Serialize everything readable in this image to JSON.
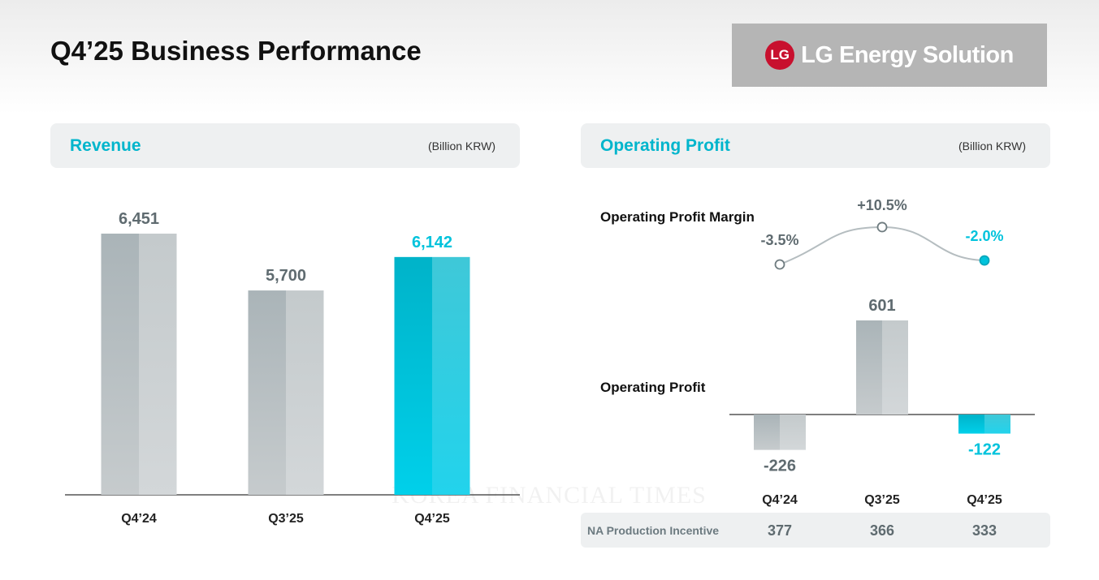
{
  "page": {
    "title": "Q4’25 Business Performance",
    "watermark": "KOREA FINANCIAL TIMES"
  },
  "logo": {
    "text": "LG Energy Solution",
    "mark": "LG"
  },
  "colors": {
    "accent": "#00c3dc",
    "gray_bar": "#bcc3c6",
    "text_gray": "#5f6b70",
    "title_cyan": "#00b5cc"
  },
  "revenue_panel": {
    "title": "Revenue",
    "unit": "(Billion KRW)"
  },
  "op_panel": {
    "title": "Operating Profit",
    "unit": "(Billion KRW)",
    "margin_label": "Operating Profit Margin",
    "profit_label": "Operating Profit"
  },
  "table": {
    "label": "NA Production Incentive",
    "values": [
      "377",
      "366",
      "333"
    ]
  },
  "chart_data": [
    {
      "type": "bar",
      "title": "Revenue",
      "ylabel": "Billion KRW",
      "categories": [
        "Q4’24",
        "Q3’25",
        "Q4’25"
      ],
      "values": [
        6451,
        5700,
        6142
      ],
      "labels": [
        "6,451",
        "5,700",
        "6,142"
      ],
      "highlight": [
        false,
        false,
        true
      ],
      "ylim": [
        3000,
        7000
      ],
      "grid": false
    },
    {
      "type": "line",
      "title": "Operating Profit Margin",
      "categories": [
        "Q4’24",
        "Q3’25",
        "Q4’25"
      ],
      "values": [
        -3.5,
        10.5,
        -2.0
      ],
      "labels": [
        "-3.5%",
        "+10.5%",
        "-2.0%"
      ],
      "highlight": [
        false,
        false,
        true
      ]
    },
    {
      "type": "bar",
      "title": "Operating Profit",
      "categories": [
        "Q4’24",
        "Q3’25",
        "Q4’25"
      ],
      "values": [
        -226,
        601,
        -122
      ],
      "labels": [
        "-226",
        "601",
        "-122"
      ],
      "highlight": [
        false,
        false,
        true
      ],
      "grid": false
    }
  ]
}
